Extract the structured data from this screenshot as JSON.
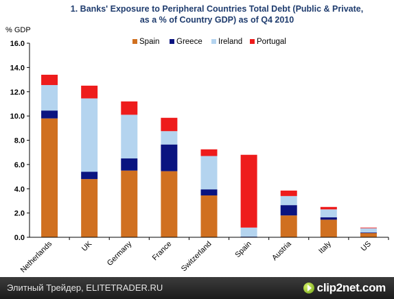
{
  "chart_data": {
    "type": "bar",
    "stacked": true,
    "title_lines": [
      "1. Banks' Exposure to Peripheral Countries Total Debt (Public & Private,",
      "as a % of Country GDP) as of Q4 2010"
    ],
    "ylabel": "% GDP",
    "ylim": [
      0,
      16
    ],
    "yticks": [
      "0.0",
      "2.0",
      "4.0",
      "6.0",
      "8.0",
      "10.0",
      "12.0",
      "14.0",
      "16.0"
    ],
    "categories": [
      "Netherlands",
      "UK",
      "Germany",
      "France",
      "Switzerland",
      "Spain",
      "Austria",
      "Italy",
      "US"
    ],
    "series": [
      {
        "name": "Spain",
        "color": "#d07020",
        "values": [
          9.8,
          4.8,
          5.5,
          5.45,
          3.45,
          0.0,
          1.8,
          1.45,
          0.35
        ]
      },
      {
        "name": "Greece",
        "color": "#0a1480",
        "values": [
          0.65,
          0.6,
          1.0,
          2.2,
          0.5,
          0.05,
          0.85,
          0.2,
          0.05
        ]
      },
      {
        "name": "Ireland",
        "color": "#b4d4ef",
        "values": [
          2.1,
          6.05,
          3.6,
          1.1,
          2.75,
          0.75,
          0.75,
          0.65,
          0.35
        ]
      },
      {
        "name": "Portugal",
        "color": "#ee1c1c",
        "values": [
          0.85,
          1.05,
          1.1,
          1.1,
          0.55,
          6.0,
          0.45,
          0.2,
          0.05
        ]
      }
    ],
    "legend_position": "top",
    "grid": false
  },
  "footer": {
    "left_text": "Элитный Трейдер, ELITETRADER.RU",
    "logo_text": "clip2net.com"
  }
}
